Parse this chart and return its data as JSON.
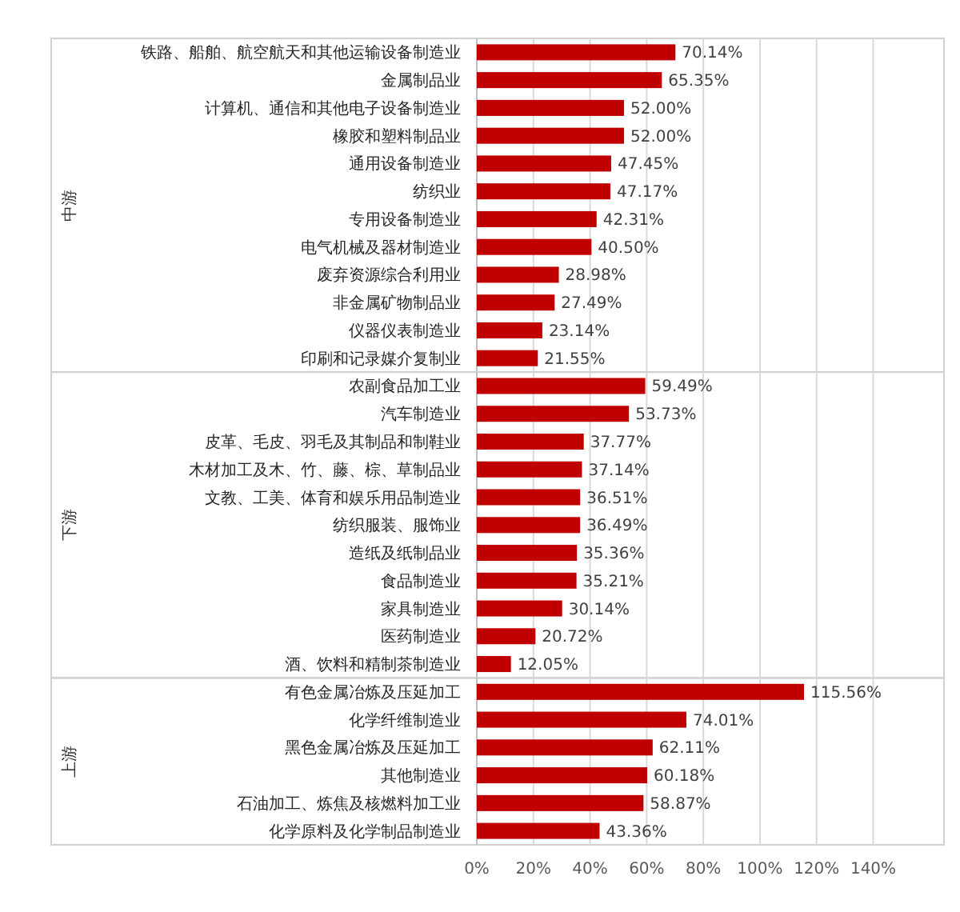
{
  "chart_data": [
    {
      "type": "bar",
      "orientation": "horizontal",
      "ylabel": "中游",
      "tick_labels": "y",
      "categories": [
        "铁路、船舶、航空航天和其他运输设备制造业",
        "金属制品业",
        "计算机、通信和其他电子设备制造业",
        "橡胶和塑料制品业",
        "通用设备制造业",
        "纺织业",
        "专用设备制造业",
        "电气机械及器材制造业",
        "废弃资源综合利用业",
        "非金属矿物制品业",
        "仪器仪表制造业",
        "印刷和记录媒介复制业"
      ],
      "values": [
        70.14,
        65.35,
        52.0,
        52.0,
        47.45,
        47.17,
        42.31,
        40.5,
        28.98,
        27.49,
        23.14,
        21.55
      ],
      "value_labels": [
        "70.14%",
        "65.35%",
        "52.00%",
        "52.00%",
        "47.45%",
        "47.17%",
        "42.31%",
        "40.50%",
        "28.98%",
        "27.49%",
        "23.14%",
        "21.55%"
      ],
      "color": "#c00000",
      "xlim": [
        0,
        165
      ],
      "xticks": [
        0,
        20,
        40,
        60,
        80,
        100,
        120,
        140
      ],
      "grid": "x"
    },
    {
      "type": "bar",
      "orientation": "horizontal",
      "ylabel": "下游",
      "tick_labels": "y",
      "categories": [
        "农副食品加工业",
        "汽车制造业",
        "皮革、毛皮、羽毛及其制品和制鞋业",
        "木材加工及木、竹、藤、棕、草制品业",
        "文教、工美、体育和娱乐用品制造业",
        "纺织服装、服饰业",
        "造纸及纸制品业",
        "食品制造业",
        "家具制造业",
        "医药制造业",
        "酒、饮料和精制茶制造业"
      ],
      "values": [
        59.49,
        53.73,
        37.77,
        37.14,
        36.51,
        36.49,
        35.36,
        35.21,
        30.14,
        20.72,
        12.05
      ],
      "value_labels": [
        "59.49%",
        "53.73%",
        "37.77%",
        "37.14%",
        "36.51%",
        "36.49%",
        "35.36%",
        "35.21%",
        "30.14%",
        "20.72%",
        "12.05%"
      ],
      "color": "#c00000",
      "xlim": [
        0,
        165
      ],
      "xticks": [
        0,
        20,
        40,
        60,
        80,
        100,
        120,
        140
      ],
      "grid": "x"
    },
    {
      "type": "bar",
      "orientation": "horizontal",
      "ylabel": "上游",
      "categories": [
        "有色金属冶炼及压延加工",
        "化学纤维制造业",
        "黑色金属冶炼及压延加工",
        "其他制造业",
        "石油加工、炼焦及核燃料加工业",
        "化学原料及化学制品制造业"
      ],
      "values": [
        115.56,
        74.01,
        62.11,
        60.18,
        58.87,
        43.36
      ],
      "value_labels": [
        "115.56%",
        "74.01%",
        "62.11%",
        "60.18%",
        "58.87%",
        "43.36%"
      ],
      "color": "#c00000",
      "xlim": [
        0,
        165
      ],
      "xticks": [
        {
          "value": 0,
          "label": "0%"
        },
        {
          "value": 20,
          "label": "20%"
        },
        {
          "value": 40,
          "label": "40%"
        },
        {
          "value": 60,
          "label": "60%"
        },
        {
          "value": 80,
          "label": "80%"
        },
        {
          "value": 100,
          "label": "100%"
        },
        {
          "value": 120,
          "label": "120%"
        },
        {
          "value": 140,
          "label": "140%"
        }
      ],
      "grid": "x"
    }
  ]
}
